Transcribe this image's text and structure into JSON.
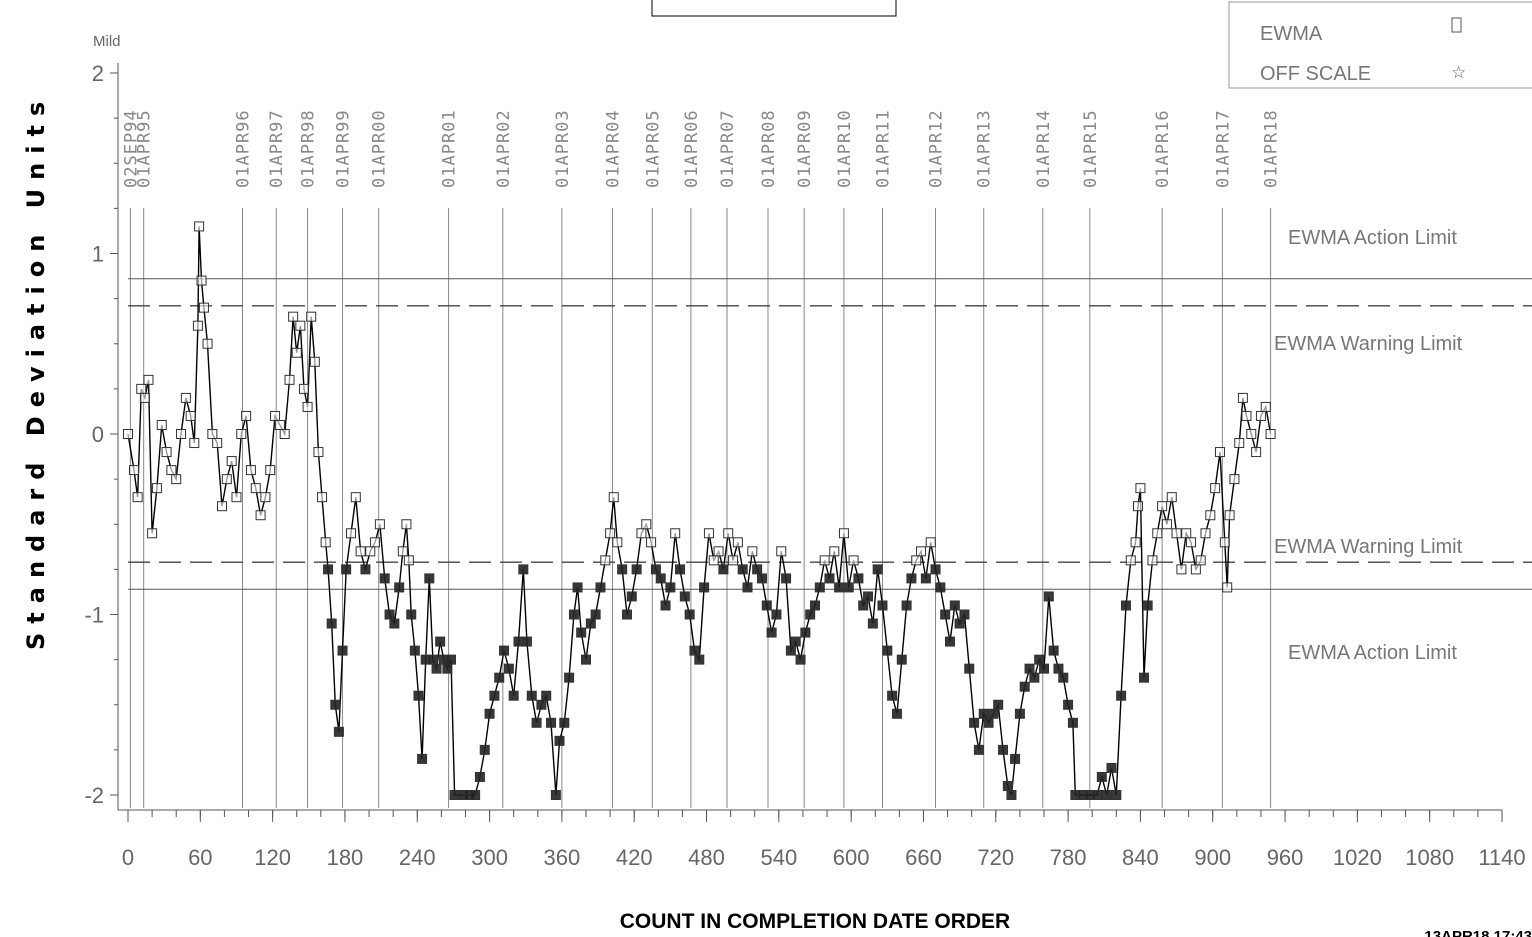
{
  "chart_data": {
    "type": "line",
    "title": "",
    "xlabel": "COUNT IN COMPLETION DATE ORDER",
    "ylabel": "Standard Deviation Units",
    "top_corner_label": "Mild",
    "timestamp": "13APR18 17:43",
    "xlim": [
      0,
      1140
    ],
    "ylim": [
      -2,
      2
    ],
    "x_ticks": [
      0,
      60,
      120,
      180,
      240,
      300,
      360,
      420,
      480,
      540,
      600,
      660,
      720,
      780,
      840,
      900,
      960,
      1020,
      1080,
      1140
    ],
    "y_ticks": [
      -2,
      -1,
      0,
      1,
      2
    ],
    "grid": false,
    "legend_position": "top-right",
    "legend": [
      {
        "label": "EWMA",
        "marker": "open-square"
      },
      {
        "label": "OFF SCALE",
        "marker": "star"
      }
    ],
    "limits": [
      {
        "label": "EWMA Action Limit",
        "value": 0.86,
        "style": "solid"
      },
      {
        "label": "EWMA Warning Limit",
        "value": 0.71,
        "style": "dashed"
      },
      {
        "label": "EWMA Warning Limit",
        "value": -0.71,
        "style": "dashed"
      },
      {
        "label": "EWMA Action Limit",
        "value": -0.86,
        "style": "solid"
      }
    ],
    "date_markers": [
      {
        "x": 2,
        "label": "02SEP94"
      },
      {
        "x": 13,
        "label": "01APR95"
      },
      {
        "x": 95,
        "label": "01APR96"
      },
      {
        "x": 123,
        "label": "01APR97"
      },
      {
        "x": 149,
        "label": "01APR98"
      },
      {
        "x": 178,
        "label": "01APR99"
      },
      {
        "x": 208,
        "label": "01APR00"
      },
      {
        "x": 266,
        "label": "01APR01"
      },
      {
        "x": 311,
        "label": "01APR02"
      },
      {
        "x": 360,
        "label": "01APR03"
      },
      {
        "x": 402,
        "label": "01APR04"
      },
      {
        "x": 435,
        "label": "01APR05"
      },
      {
        "x": 467,
        "label": "01APR06"
      },
      {
        "x": 497,
        "label": "01APR07"
      },
      {
        "x": 531,
        "label": "01APR08"
      },
      {
        "x": 561,
        "label": "01APR09"
      },
      {
        "x": 594,
        "label": "01APR10"
      },
      {
        "x": 626,
        "label": "01APR11"
      },
      {
        "x": 670,
        "label": "01APR12"
      },
      {
        "x": 710,
        "label": "01APR13"
      },
      {
        "x": 759,
        "label": "01APR14"
      },
      {
        "x": 798,
        "label": "01APR15"
      },
      {
        "x": 858,
        "label": "01APR16"
      },
      {
        "x": 908,
        "label": "01APR17"
      },
      {
        "x": 948,
        "label": "01APR18"
      }
    ],
    "series": [
      {
        "name": "EWMA",
        "points": [
          [
            0,
            0.0
          ],
          [
            5,
            -0.2
          ],
          [
            8,
            -0.35
          ],
          [
            11,
            0.25
          ],
          [
            14,
            0.2
          ],
          [
            17,
            0.3
          ],
          [
            20,
            -0.55
          ],
          [
            24,
            -0.3
          ],
          [
            28,
            0.05
          ],
          [
            32,
            -0.1
          ],
          [
            36,
            -0.2
          ],
          [
            40,
            -0.25
          ],
          [
            44,
            0.0
          ],
          [
            48,
            0.2
          ],
          [
            52,
            0.1
          ],
          [
            55,
            -0.05
          ],
          [
            58,
            0.6
          ],
          [
            59,
            1.15
          ],
          [
            61,
            0.85
          ],
          [
            63,
            0.7
          ],
          [
            66,
            0.5
          ],
          [
            70,
            0.0
          ],
          [
            74,
            -0.05
          ],
          [
            78,
            -0.4
          ],
          [
            82,
            -0.25
          ],
          [
            86,
            -0.15
          ],
          [
            90,
            -0.35
          ],
          [
            94,
            0.0
          ],
          [
            98,
            0.1
          ],
          [
            102,
            -0.2
          ],
          [
            106,
            -0.3
          ],
          [
            110,
            -0.45
          ],
          [
            114,
            -0.35
          ],
          [
            118,
            -0.2
          ],
          [
            122,
            0.1
          ],
          [
            126,
            0.05
          ],
          [
            130,
            0.0
          ],
          [
            134,
            0.3
          ],
          [
            137,
            0.65
          ],
          [
            140,
            0.45
          ],
          [
            143,
            0.6
          ],
          [
            146,
            0.25
          ],
          [
            149,
            0.15
          ],
          [
            152,
            0.65
          ],
          [
            155,
            0.4
          ],
          [
            158,
            -0.1
          ],
          [
            161,
            -0.35
          ],
          [
            164,
            -0.6
          ],
          [
            166,
            -0.75
          ],
          [
            169,
            -1.05
          ],
          [
            172,
            -1.5
          ],
          [
            175,
            -1.65
          ],
          [
            178,
            -1.2
          ],
          [
            181,
            -0.75
          ],
          [
            185,
            -0.55
          ],
          [
            189,
            -0.35
          ],
          [
            193,
            -0.65
          ],
          [
            197,
            -0.75
          ],
          [
            201,
            -0.65
          ],
          [
            205,
            -0.6
          ],
          [
            209,
            -0.5
          ],
          [
            213,
            -0.8
          ],
          [
            217,
            -1.0
          ],
          [
            221,
            -1.05
          ],
          [
            225,
            -0.85
          ],
          [
            228,
            -0.65
          ],
          [
            231,
            -0.5
          ],
          [
            233,
            -0.7
          ],
          [
            235,
            -1.0
          ],
          [
            238,
            -1.2
          ],
          [
            241,
            -1.45
          ],
          [
            244,
            -1.8
          ],
          [
            247,
            -1.25
          ],
          [
            250,
            -0.8
          ],
          [
            253,
            -1.25
          ],
          [
            256,
            -1.3
          ],
          [
            259,
            -1.15
          ],
          [
            262,
            -1.25
          ],
          [
            265,
            -1.3
          ],
          [
            268,
            -1.25
          ],
          [
            271,
            -2.0
          ],
          [
            278,
            -2.0
          ],
          [
            283,
            -2.0
          ],
          [
            288,
            -2.0
          ],
          [
            292,
            -1.9
          ],
          [
            296,
            -1.75
          ],
          [
            300,
            -1.55
          ],
          [
            304,
            -1.45
          ],
          [
            308,
            -1.35
          ],
          [
            312,
            -1.2
          ],
          [
            316,
            -1.3
          ],
          [
            320,
            -1.45
          ],
          [
            324,
            -1.15
          ],
          [
            328,
            -0.75
          ],
          [
            331,
            -1.15
          ],
          [
            335,
            -1.45
          ],
          [
            339,
            -1.6
          ],
          [
            343,
            -1.5
          ],
          [
            347,
            -1.45
          ],
          [
            351,
            -1.6
          ],
          [
            355,
            -2.0
          ],
          [
            358,
            -1.7
          ],
          [
            362,
            -1.6
          ],
          [
            366,
            -1.35
          ],
          [
            370,
            -1.0
          ],
          [
            373,
            -0.85
          ],
          [
            376,
            -1.1
          ],
          [
            380,
            -1.25
          ],
          [
            384,
            -1.05
          ],
          [
            388,
            -1.0
          ],
          [
            392,
            -0.85
          ],
          [
            396,
            -0.7
          ],
          [
            400,
            -0.55
          ],
          [
            403,
            -0.35
          ],
          [
            406,
            -0.6
          ],
          [
            410,
            -0.75
          ],
          [
            414,
            -1.0
          ],
          [
            418,
            -0.9
          ],
          [
            422,
            -0.75
          ],
          [
            426,
            -0.55
          ],
          [
            430,
            -0.5
          ],
          [
            434,
            -0.6
          ],
          [
            438,
            -0.75
          ],
          [
            442,
            -0.8
          ],
          [
            446,
            -0.95
          ],
          [
            450,
            -0.85
          ],
          [
            454,
            -0.55
          ],
          [
            458,
            -0.75
          ],
          [
            462,
            -0.9
          ],
          [
            466,
            -1.0
          ],
          [
            470,
            -1.2
          ],
          [
            474,
            -1.25
          ],
          [
            478,
            -0.85
          ],
          [
            482,
            -0.55
          ],
          [
            486,
            -0.7
          ],
          [
            490,
            -0.65
          ],
          [
            494,
            -0.75
          ],
          [
            498,
            -0.55
          ],
          [
            502,
            -0.7
          ],
          [
            506,
            -0.6
          ],
          [
            510,
            -0.75
          ],
          [
            514,
            -0.85
          ],
          [
            518,
            -0.65
          ],
          [
            522,
            -0.75
          ],
          [
            526,
            -0.8
          ],
          [
            530,
            -0.95
          ],
          [
            534,
            -1.1
          ],
          [
            538,
            -1.0
          ],
          [
            542,
            -0.65
          ],
          [
            546,
            -0.8
          ],
          [
            550,
            -1.2
          ],
          [
            554,
            -1.15
          ],
          [
            558,
            -1.25
          ],
          [
            562,
            -1.1
          ],
          [
            566,
            -1.0
          ],
          [
            570,
            -0.95
          ],
          [
            574,
            -0.85
          ],
          [
            578,
            -0.7
          ],
          [
            582,
            -0.8
          ],
          [
            586,
            -0.65
          ],
          [
            590,
            -0.85
          ],
          [
            594,
            -0.55
          ],
          [
            598,
            -0.85
          ],
          [
            602,
            -0.7
          ],
          [
            606,
            -0.8
          ],
          [
            610,
            -0.95
          ],
          [
            614,
            -0.9
          ],
          [
            618,
            -1.05
          ],
          [
            622,
            -0.75
          ],
          [
            626,
            -0.95
          ],
          [
            630,
            -1.2
          ],
          [
            634,
            -1.45
          ],
          [
            638,
            -1.55
          ],
          [
            642,
            -1.25
          ],
          [
            646,
            -0.95
          ],
          [
            650,
            -0.8
          ],
          [
            654,
            -0.7
          ],
          [
            658,
            -0.65
          ],
          [
            662,
            -0.8
          ],
          [
            666,
            -0.6
          ],
          [
            670,
            -0.75
          ],
          [
            674,
            -0.85
          ],
          [
            678,
            -1.0
          ],
          [
            682,
            -1.15
          ],
          [
            686,
            -0.95
          ],
          [
            690,
            -1.05
          ],
          [
            694,
            -1.0
          ],
          [
            698,
            -1.3
          ],
          [
            702,
            -1.6
          ],
          [
            706,
            -1.75
          ],
          [
            710,
            -1.55
          ],
          [
            714,
            -1.6
          ],
          [
            718,
            -1.55
          ],
          [
            722,
            -1.5
          ],
          [
            726,
            -1.75
          ],
          [
            730,
            -1.95
          ],
          [
            733,
            -2.0
          ],
          [
            736,
            -1.8
          ],
          [
            740,
            -1.55
          ],
          [
            744,
            -1.4
          ],
          [
            748,
            -1.3
          ],
          [
            752,
            -1.35
          ],
          [
            756,
            -1.25
          ],
          [
            760,
            -1.3
          ],
          [
            764,
            -0.9
          ],
          [
            768,
            -1.2
          ],
          [
            772,
            -1.3
          ],
          [
            776,
            -1.35
          ],
          [
            780,
            -1.5
          ],
          [
            784,
            -1.6
          ],
          [
            786,
            -2.0
          ],
          [
            792,
            -2.0
          ],
          [
            798,
            -2.0
          ],
          [
            804,
            -2.0
          ],
          [
            808,
            -1.9
          ],
          [
            812,
            -2.0
          ],
          [
            816,
            -1.85
          ],
          [
            820,
            -2.0
          ],
          [
            824,
            -1.45
          ],
          [
            828,
            -0.95
          ],
          [
            832,
            -0.7
          ],
          [
            836,
            -0.6
          ],
          [
            838,
            -0.4
          ],
          [
            840,
            -0.3
          ],
          [
            843,
            -1.35
          ],
          [
            846,
            -0.95
          ],
          [
            850,
            -0.7
          ],
          [
            854,
            -0.55
          ],
          [
            858,
            -0.4
          ],
          [
            862,
            -0.5
          ],
          [
            866,
            -0.35
          ],
          [
            870,
            -0.55
          ],
          [
            874,
            -0.75
          ],
          [
            878,
            -0.55
          ],
          [
            882,
            -0.6
          ],
          [
            886,
            -0.75
          ],
          [
            890,
            -0.7
          ],
          [
            894,
            -0.55
          ],
          [
            898,
            -0.45
          ],
          [
            902,
            -0.3
          ],
          [
            906,
            -0.1
          ],
          [
            910,
            -0.6
          ],
          [
            912,
            -0.85
          ],
          [
            914,
            -0.45
          ],
          [
            918,
            -0.25
          ],
          [
            922,
            -0.05
          ],
          [
            925,
            0.2
          ],
          [
            928,
            0.1
          ],
          [
            932,
            0.0
          ],
          [
            936,
            -0.1
          ],
          [
            940,
            0.1
          ],
          [
            944,
            0.15
          ],
          [
            948,
            0.0
          ]
        ]
      }
    ]
  }
}
